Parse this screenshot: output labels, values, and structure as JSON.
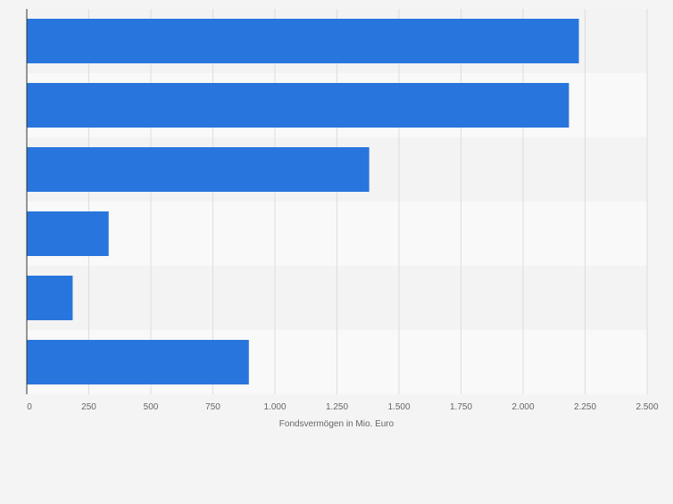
{
  "chart_data": {
    "type": "bar",
    "orientation": "horizontal",
    "categories": [
      "",
      "",
      "",
      "",
      "",
      ""
    ],
    "values": [
      2225,
      2185,
      1380,
      330,
      185,
      895
    ],
    "xlabel": "Fondsvermögen in Mio. Euro",
    "xlim": [
      0,
      2500
    ],
    "x_ticks": [
      0,
      250,
      500,
      750,
      1000,
      1250,
      1500,
      1750,
      2000,
      2250,
      2500
    ],
    "x_tick_labels": [
      "0",
      "250",
      "500",
      "750",
      "1.000",
      "1.250",
      "1.500",
      "1.750",
      "2.000",
      "2.250",
      "2.500"
    ],
    "grid": true,
    "legend": "none",
    "colors": {
      "bar": "#2876dd",
      "band_light": "#f9f9f9",
      "band_dark": "#f3f3f3",
      "page": "#f4f4f4",
      "grid": "#dddddd",
      "axis": "#333333",
      "tick_text": "#666666"
    }
  }
}
